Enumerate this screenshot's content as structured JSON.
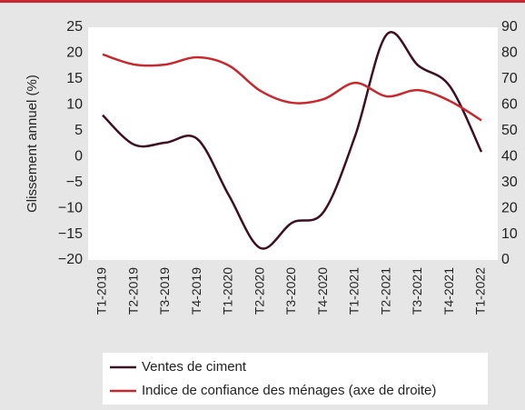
{
  "chart_data": {
    "type": "line",
    "y_label": "Glissement annuel (%)",
    "categories": [
      "T1-2019",
      "T2-2019",
      "T3-2019",
      "T4-2019",
      "T1-2020",
      "T2-2020",
      "T3-2020",
      "T4-2020",
      "T1-2021",
      "T2-2021",
      "T3-2021",
      "T4-2021",
      "T1-2022"
    ],
    "series": [
      {
        "name": "Ventes de ciment",
        "color": "#3d0f22",
        "values": [
          8,
          2.3,
          2.7,
          3.4,
          -7.5,
          -17.7,
          -12.8,
          -10.7,
          4,
          23.6,
          17.6,
          13.6,
          0.9
        ]
      },
      {
        "name": "Indice de confiance des ménages (axe de droite)",
        "color": "#c8282e",
        "axis": "y2",
        "values": [
          79.5,
          75.6,
          75.6,
          78.4,
          75.2,
          65.4,
          60.8,
          62.2,
          68.5,
          63.3,
          65.7,
          61.5,
          54
        ]
      }
    ],
    "ylim": [
      -20,
      25
    ],
    "yticks": [
      {
        "value": -20,
        "label": "−20"
      },
      {
        "value": -15,
        "label": "−15"
      },
      {
        "value": -10,
        "label": "−10"
      },
      {
        "value": -5,
        "label": "−5"
      },
      0,
      5,
      10,
      15,
      20,
      25
    ],
    "y2lim": [
      0,
      90
    ],
    "y2ticks": [
      0,
      10,
      20,
      30,
      40,
      50,
      60,
      70,
      80,
      90
    ]
  }
}
